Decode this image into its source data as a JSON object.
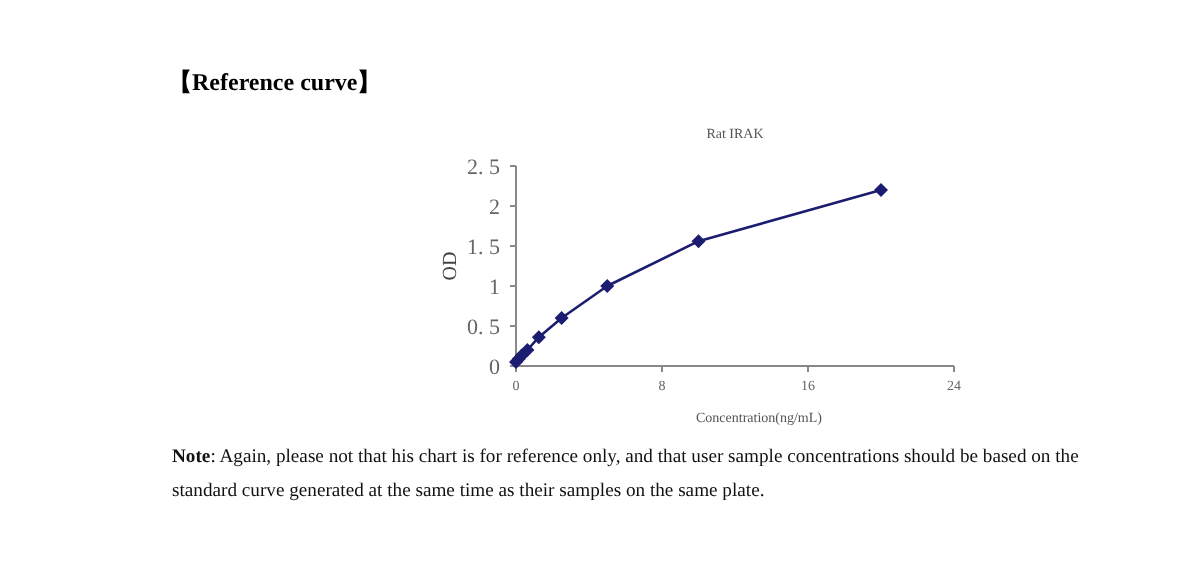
{
  "chart_data": {
    "type": "line",
    "title": "【Reference curve】",
    "subtitle": "Rat IRAK",
    "xlabel": "Concentration(ng/mL)",
    "ylabel": "OD",
    "x": [
      0,
      0.156,
      0.3125,
      0.625,
      1.25,
      2.5,
      5,
      10,
      20
    ],
    "series": [
      {
        "color": "#1c1c70",
        "values": [
          0.05,
          0.09,
          0.13,
          0.2,
          0.36,
          0.6,
          1.0,
          1.56,
          2.2
        ]
      }
    ],
    "xlim": [
      0,
      24
    ],
    "xticks": [
      0,
      8,
      16,
      24
    ],
    "ylim": [
      0,
      2.5
    ],
    "yticks": [
      0,
      {
        "value": 0.5,
        "label": "0. 5"
      },
      1,
      {
        "value": 1.5,
        "label": "1. 5"
      },
      2,
      {
        "value": 2.5,
        "label": "2. 5"
      }
    ],
    "marker": "diamond",
    "line_style": "solid",
    "grid": false,
    "annotations": [
      "Note: Again, please not that his chart is for reference only, and that user sample concentrations should be based on the standard curve generated at the same time as their samples on the same plate."
    ]
  }
}
